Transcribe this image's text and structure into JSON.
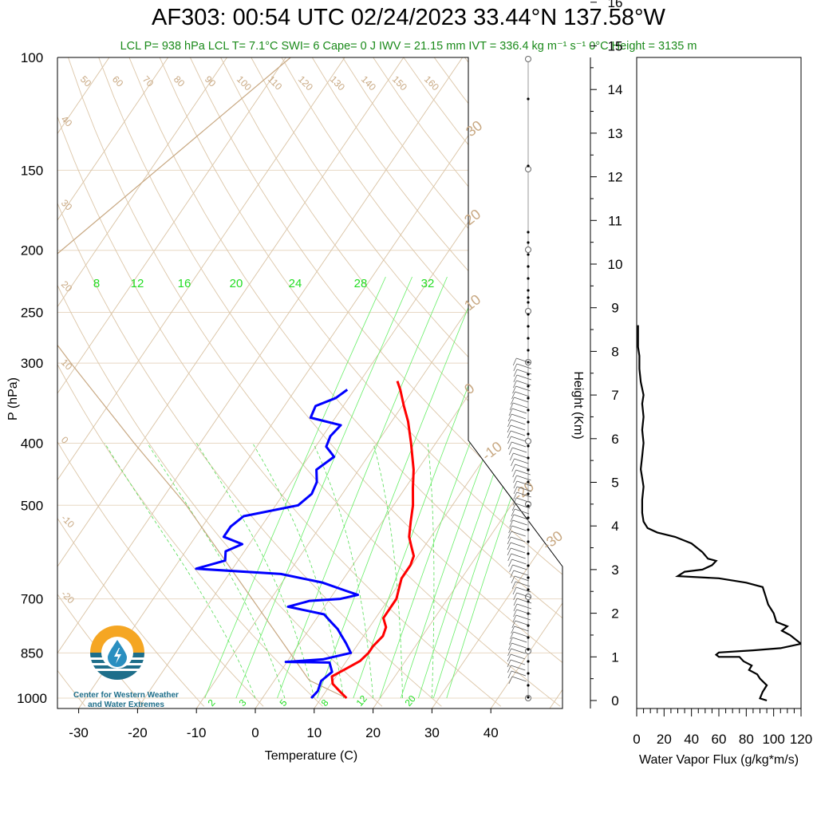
{
  "title": "AF303: 00:54 UTC 02/24/2023  33.44°N 137.58°W",
  "subtitle": "LCL P= 938 hPa  LCL T= 7.1°C  SWI= 6  Cape= 0 J  IWV = 21.15 mm  IVT = 336.4 kg m⁻¹ s⁻¹  0°C Height = 3135 m",
  "logo": {
    "line1": "Center for Western Weather",
    "line2": "and Water Extremes"
  },
  "colors": {
    "temperature": "#ff0000",
    "dewpoint": "#0000ff",
    "theta": "#c8a882",
    "mixing_ratio": "#22dd22",
    "flux": "#000000"
  },
  "chart_data": [
    {
      "type": "line",
      "ylabel": "P (hPa)",
      "xlabel": "Temperature (C)",
      "yscale": "log",
      "pressure_ticks": [
        "100",
        "150",
        "200",
        "250",
        "300",
        "400",
        "500",
        "700",
        "850",
        "1000"
      ],
      "temperature_ticks": [
        "-30",
        "-20",
        "-10",
        "0",
        "10",
        "20",
        "30",
        "40"
      ],
      "dry_adiabat_labels": [
        "50",
        "60",
        "70",
        "80",
        "90",
        "100",
        "110",
        "120",
        "130",
        "140",
        "150",
        "160",
        "40",
        "30",
        "20",
        "10",
        "0",
        "-10",
        "-20"
      ],
      "isotherm_labels": [
        "30",
        "20",
        "10",
        "0",
        "-10",
        "-20",
        "-30"
      ],
      "mixing_ratio_labels_top": [
        "8",
        "12",
        "16",
        "20",
        "24",
        "28",
        "32"
      ],
      "mixing_ratio_labels_bottom": [
        "2",
        "3",
        "5",
        "8",
        "12",
        "20"
      ],
      "series": [
        {
          "name": "temperature",
          "points": [
            [
              1000,
              15.5
            ],
            [
              975,
              13.5
            ],
            [
              950,
              11.5
            ],
            [
              925,
              10.5
            ],
            [
              900,
              12.0
            ],
            [
              875,
              13.5
            ],
            [
              850,
              14.0
            ],
            [
              830,
              14.0
            ],
            [
              800,
              14.5
            ],
            [
              775,
              14.0
            ],
            [
              750,
              12.5
            ],
            [
              700,
              12.5
            ],
            [
              650,
              11.0
            ],
            [
              620,
              11.0
            ],
            [
              600,
              10.5
            ],
            [
              580,
              9.0
            ],
            [
              560,
              7.5
            ],
            [
              530,
              6.0
            ],
            [
              500,
              4.5
            ],
            [
              470,
              2.5
            ],
            [
              440,
              0.5
            ],
            [
              400,
              -3.0
            ],
            [
              370,
              -6.0
            ],
            [
              350,
              -8.5
            ],
            [
              330,
              -11.0
            ],
            [
              320,
              -12.5
            ]
          ]
        },
        {
          "name": "dewpoint",
          "points": [
            [
              1000,
              9.5
            ],
            [
              975,
              9.8
            ],
            [
              940,
              9.2
            ],
            [
              910,
              10.0
            ],
            [
              880,
              8.5
            ],
            [
              878,
              1.0
            ],
            [
              870,
              7.0
            ],
            [
              850,
              11.0
            ],
            [
              820,
              9.0
            ],
            [
              800,
              7.5
            ],
            [
              780,
              6.0
            ],
            [
              760,
              4.0
            ],
            [
              740,
              2.0
            ],
            [
              720,
              -5.0
            ],
            [
              705,
              -2.0
            ],
            [
              700,
              3.0
            ],
            [
              690,
              5.5
            ],
            [
              680,
              3.0
            ],
            [
              660,
              -2.0
            ],
            [
              640,
              -10.0
            ],
            [
              628,
              -25.0
            ],
            [
              610,
              -21.0
            ],
            [
              590,
              -22.0
            ],
            [
              575,
              -20.0
            ],
            [
              560,
              -24.0
            ],
            [
              540,
              -24.0
            ],
            [
              520,
              -23.0
            ],
            [
              500,
              -15.0
            ],
            [
              480,
              -14.0
            ],
            [
              460,
              -14.5
            ],
            [
              440,
              -16.0
            ],
            [
              420,
              -14.5
            ],
            [
              405,
              -17.0
            ],
            [
              390,
              -17.5
            ],
            [
              375,
              -17.0
            ],
            [
              365,
              -23.0
            ],
            [
              350,
              -23.5
            ],
            [
              340,
              -21.0
            ],
            [
              330,
              -20.0
            ]
          ]
        }
      ],
      "lcl_parcel_profile": [
        [
          1000,
          15.5
        ],
        [
          938,
          7.1
        ],
        [
          700,
          -12.0
        ],
        [
          500,
          -34.0
        ],
        [
          400,
          -50.0
        ],
        [
          300,
          -70.0
        ],
        [
          230,
          -88.0
        ],
        [
          100,
          -68.0
        ]
      ]
    },
    {
      "type": "line",
      "xlabel": "Water Vapor Flux (g/kg*m/s)",
      "ylabel": "Height (Km)",
      "xlim": [
        0,
        120
      ],
      "ylim": [
        0,
        16
      ],
      "x_ticks": [
        "0",
        "20",
        "40",
        "60",
        "80",
        "100",
        "120"
      ],
      "y_ticks": [
        "0",
        "1",
        "2",
        "3",
        "4",
        "5",
        "6",
        "7",
        "8",
        "9",
        "10",
        "11",
        "12",
        "13",
        "14",
        "15",
        "16"
      ],
      "series": [
        {
          "points": [
            [
              95,
              0.0
            ],
            [
              90,
              0.05
            ],
            [
              92,
              0.2
            ],
            [
              95,
              0.35
            ],
            [
              90,
              0.5
            ],
            [
              88,
              0.6
            ],
            [
              82,
              0.7
            ],
            [
              84,
              0.8
            ],
            [
              78,
              0.9
            ],
            [
              75,
              1.0
            ],
            [
              60,
              1.0
            ],
            [
              58,
              1.05
            ],
            [
              60,
              1.1
            ],
            [
              85,
              1.15
            ],
            [
              105,
              1.2
            ],
            [
              120,
              1.3
            ],
            [
              112,
              1.5
            ],
            [
              106,
              1.6
            ],
            [
              110,
              1.7
            ],
            [
              102,
              1.8
            ],
            [
              100,
              2.0
            ],
            [
              96,
              2.2
            ],
            [
              94,
              2.4
            ],
            [
              92,
              2.6
            ],
            [
              80,
              2.7
            ],
            [
              60,
              2.8
            ],
            [
              30,
              2.85
            ],
            [
              35,
              2.95
            ],
            [
              48,
              3.0
            ],
            [
              55,
              3.1
            ],
            [
              58,
              3.2
            ],
            [
              52,
              3.25
            ],
            [
              48,
              3.4
            ],
            [
              40,
              3.6
            ],
            [
              28,
              3.75
            ],
            [
              15,
              3.85
            ],
            [
              8,
              3.95
            ],
            [
              5,
              4.1
            ],
            [
              4,
              4.3
            ],
            [
              4,
              4.6
            ],
            [
              5,
              4.9
            ],
            [
              4,
              5.1
            ],
            [
              3,
              5.3
            ],
            [
              4,
              5.6
            ],
            [
              5,
              5.9
            ],
            [
              4,
              6.2
            ],
            [
              5,
              6.5
            ],
            [
              4,
              6.8
            ],
            [
              5,
              7.0
            ],
            [
              3,
              7.3
            ],
            [
              2,
              7.6
            ],
            [
              2,
              7.9
            ],
            [
              1,
              8.1
            ],
            [
              1,
              8.4
            ],
            [
              1,
              8.6
            ]
          ]
        }
      ]
    }
  ]
}
